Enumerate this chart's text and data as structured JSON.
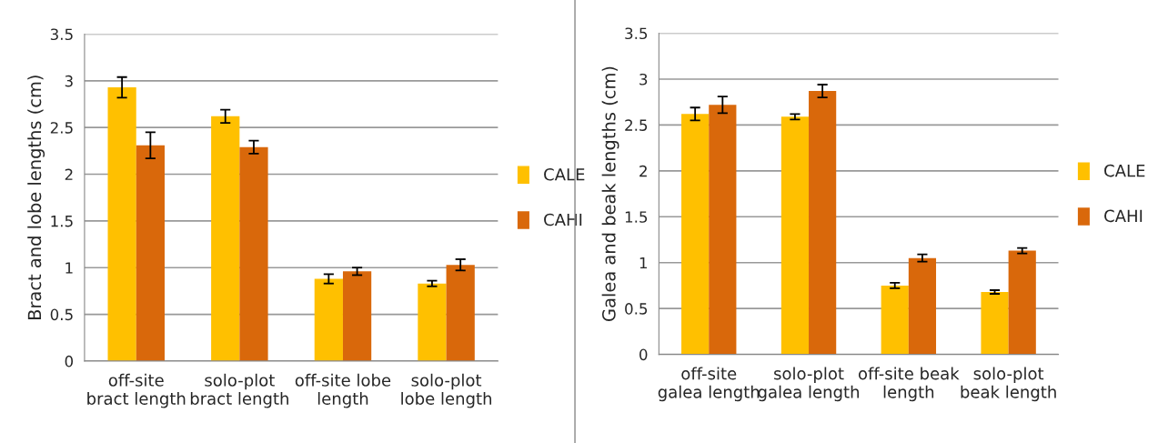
{
  "chart_data": [
    {
      "type": "bar",
      "ylabel": "Bract and lobe lengths (cm)",
      "categories": [
        "off-site\nbract length",
        "solo-plot\nbract length",
        "off-site lobe\nlength",
        "solo-plot\nlobe length"
      ],
      "series": [
        {
          "name": "CALE",
          "color": "#ffc000",
          "values": [
            2.93,
            2.62,
            0.88,
            0.83
          ],
          "errors": [
            0.11,
            0.07,
            0.05,
            0.03
          ]
        },
        {
          "name": "CAHI",
          "color": "#d9680b",
          "values": [
            2.31,
            2.29,
            0.96,
            1.03
          ],
          "errors": [
            0.14,
            0.07,
            0.04,
            0.06
          ]
        }
      ],
      "ylim": [
        0,
        3.5
      ],
      "yticks": [
        0,
        0.5,
        1,
        1.5,
        2,
        2.5,
        3,
        3.5
      ],
      "grid": "y",
      "legend": "right"
    },
    {
      "type": "bar",
      "ylabel": "Galea and beak lengths (cm)",
      "categories": [
        "off-site\ngalea length",
        "solo-plot\ngalea length",
        "off-site beak\nlength",
        "solo-plot\nbeak length"
      ],
      "series": [
        {
          "name": "CALE",
          "color": "#ffc000",
          "values": [
            2.62,
            2.59,
            0.75,
            0.68
          ],
          "errors": [
            0.07,
            0.03,
            0.03,
            0.02
          ]
        },
        {
          "name": "CAHI",
          "color": "#d9680b",
          "values": [
            2.72,
            2.87,
            1.05,
            1.13
          ],
          "errors": [
            0.09,
            0.07,
            0.04,
            0.03
          ]
        }
      ],
      "ylim": [
        0,
        3.5
      ],
      "yticks": [
        0,
        0.5,
        1,
        1.5,
        2,
        2.5,
        3,
        3.5
      ],
      "grid": "y",
      "legend": "right"
    }
  ]
}
